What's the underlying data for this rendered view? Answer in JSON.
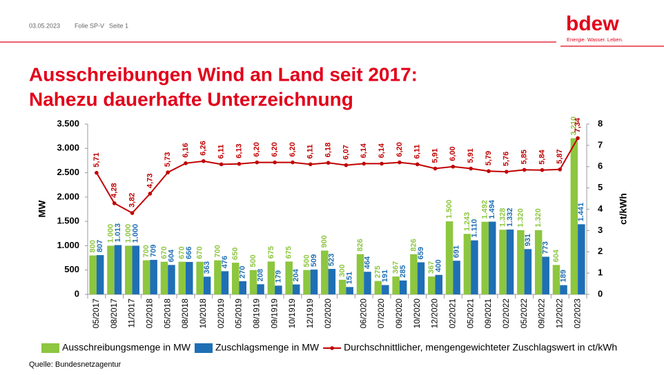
{
  "header": {
    "date": "03.05.2023",
    "slide": "Folie SP-V",
    "page": "Seite 1"
  },
  "logo": {
    "name": "bdew",
    "tagline": "Energie. Wasser. Leben."
  },
  "source": "Quelle: Bundesnetzagentur",
  "chart_data": {
    "type": "bar",
    "title": [
      "Ausschreibungen Wind an Land seit 2017:",
      "Nahezu dauerhafte Unterzeichnung"
    ],
    "ylabel": "MW",
    "y2label": "ct/kWh",
    "categories": [
      "05/2017",
      "08/2017",
      "11/2017",
      "02/2018",
      "05/2018",
      "08/2018",
      "10/2018",
      "02/2019",
      "05/2019",
      "08/1919",
      "09/1919",
      "10/1919",
      "12/1919",
      "02/2020",
      null,
      "06/2020",
      "07/2020",
      "09/2020",
      "10/2020",
      "12/2020",
      "02/2021",
      "05/2021",
      "09/2021",
      "02/2022",
      "05/2022",
      "09/2022",
      "12/2022",
      "02/2023"
    ],
    "series": [
      {
        "name": "Ausschreibungsmenge in MW",
        "color": "#8dc63f",
        "type": "bar",
        "values": [
          800,
          1000,
          1000,
          700,
          670,
          670,
          670,
          700,
          650,
          500,
          675,
          675,
          500,
          900,
          300,
          826,
          275,
          367,
          826,
          367,
          1500,
          1243,
          1492,
          1328,
          1320,
          1320,
          604,
          3210
        ],
        "value_labels": [
          "800",
          "1.000",
          "1.000",
          "700",
          "670",
          "670",
          "670",
          "700",
          "650",
          "500",
          "675",
          "675",
          "500",
          "900",
          "300",
          "826",
          "275",
          "367",
          "826",
          "367",
          "1.500",
          "1.243",
          "1.492",
          "1.328",
          "1.320",
          "1.320",
          "604",
          "3.210"
        ]
      },
      {
        "name": "Zuschlagsmenge in MW",
        "color": "#1f6fb5",
        "type": "bar",
        "values": [
          807,
          1013,
          1000,
          709,
          604,
          666,
          363,
          476,
          270,
          208,
          179,
          204,
          509,
          523,
          151,
          464,
          191,
          285,
          659,
          400,
          691,
          1110,
          1494,
          1332,
          931,
          773,
          189,
          1441
        ],
        "value_labels": [
          "807",
          "1.013",
          "1.000",
          "709",
          "604",
          "666",
          "363",
          "476",
          "270",
          "208",
          "179",
          "204",
          "509",
          "523",
          "151",
          "464",
          "191",
          "285",
          "659",
          "400",
          "691",
          "1.110",
          "1.494",
          "1.332",
          "931",
          "773",
          "189",
          "1.441"
        ]
      },
      {
        "name": "Durchschnittlicher, mengengewichteter Zuschlagswert in ct/kWh",
        "color": "#c00000",
        "type": "line",
        "axis": "y2",
        "values": [
          5.71,
          4.28,
          3.82,
          4.73,
          5.73,
          6.16,
          6.26,
          6.11,
          6.13,
          6.2,
          6.2,
          6.2,
          6.11,
          6.18,
          6.07,
          6.14,
          6.14,
          6.2,
          6.11,
          5.91,
          6.0,
          5.91,
          5.79,
          5.76,
          5.85,
          5.84,
          5.87,
          7.34
        ],
        "value_labels": [
          "5,71",
          "4,28",
          "3,82",
          "4,73",
          "5,73",
          "6,16",
          "6,26",
          "6,11",
          "6,13",
          "6,20",
          "6,20",
          "6,20",
          "6,11",
          "6,18",
          "6,07",
          "6,14",
          "6,14",
          "6,20",
          "6,11",
          "5,91",
          "6,00",
          "5,91",
          "5,79",
          "5,76",
          "5,85",
          "5,84",
          "5,87",
          "7,34"
        ]
      }
    ],
    "ylim": [
      0,
      3500
    ],
    "yticks": [
      0,
      500,
      {
        "value": 1000,
        "label": "1.000"
      },
      {
        "value": 1500,
        "label": "1.500"
      },
      {
        "value": 2000,
        "label": "2.000"
      },
      {
        "value": 2500,
        "label": "2.500"
      },
      {
        "value": 3000,
        "label": "3.000"
      },
      {
        "value": 3500,
        "label": "3.500"
      }
    ],
    "y2lim": [
      0,
      8
    ],
    "y2ticks": [
      0,
      1,
      2,
      3,
      4,
      5,
      6,
      7,
      8
    ],
    "legend": "bottom"
  }
}
